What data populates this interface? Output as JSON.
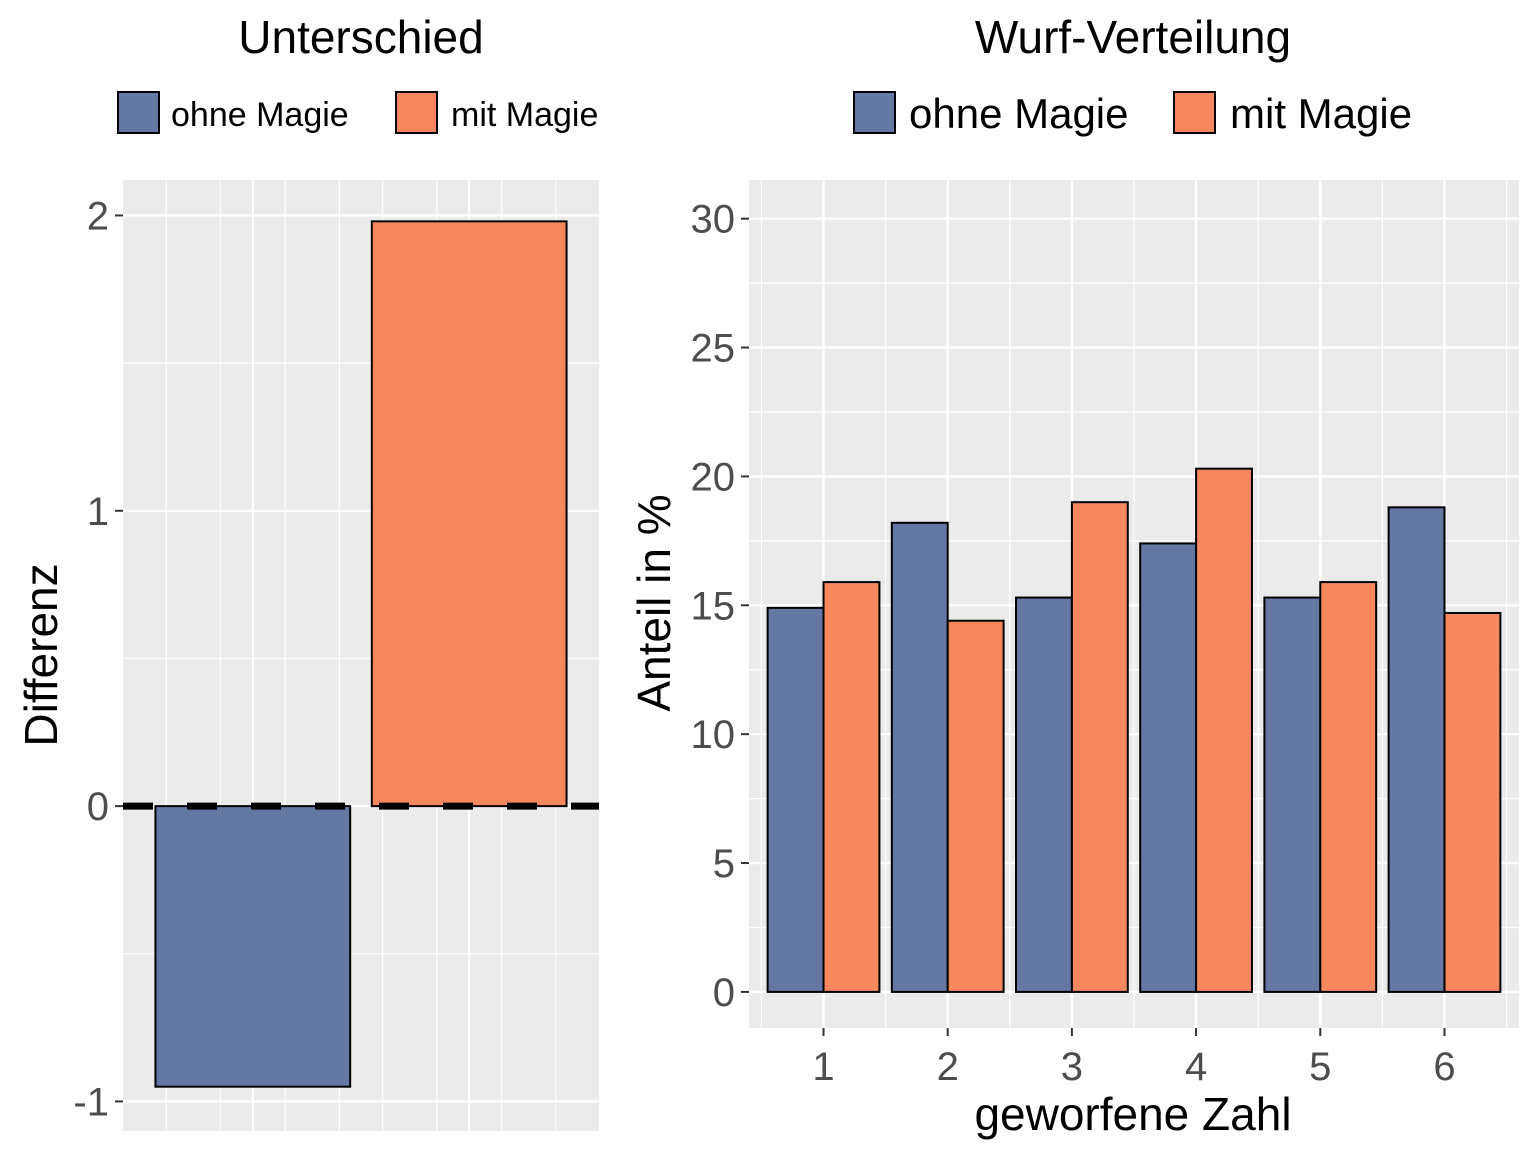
{
  "colors": {
    "ohne_magie": "#6577A3",
    "mit_magie": "#F7885E",
    "panel_bg": "#EBEBEB",
    "grid_major": "#FFFFFF",
    "bar_outline": "#000000",
    "tick_text": "#4D4D4D"
  },
  "chart_data": [
    {
      "type": "bar",
      "title": "Unterschied",
      "ylabel": "Differenz",
      "xlabel": "",
      "legend": {
        "position": "top",
        "entries": [
          "ohne Magie",
          "mit Magie"
        ]
      },
      "categories": [
        "ohne Magie",
        "mit Magie"
      ],
      "values": [
        -0.95,
        1.98
      ],
      "ylim": [
        -1.1,
        2.12
      ],
      "yticks": [
        -1,
        0,
        1,
        2
      ],
      "ytick_labels": [
        "-1",
        "0",
        "1",
        "2"
      ],
      "reference_line": {
        "y": 0,
        "style": "dashed"
      },
      "grid": true
    },
    {
      "type": "bar",
      "title": "Wurf-Verteilung",
      "ylabel": "Anteil in %",
      "xlabel": "geworfene Zahl",
      "legend": {
        "position": "top",
        "entries": [
          "ohne Magie",
          "mit Magie"
        ]
      },
      "categories": [
        "1",
        "2",
        "3",
        "4",
        "5",
        "6"
      ],
      "series": [
        {
          "name": "ohne Magie",
          "values": [
            14.9,
            18.2,
            15.3,
            17.4,
            15.3,
            18.8
          ]
        },
        {
          "name": "mit Magie",
          "values": [
            15.9,
            14.4,
            19.0,
            20.3,
            15.9,
            14.7
          ]
        }
      ],
      "ylim": [
        -1.4,
        31.5
      ],
      "yticks": [
        0,
        5,
        10,
        15,
        20,
        25,
        30
      ],
      "ytick_labels": [
        "0",
        "5",
        "10",
        "15",
        "20",
        "25",
        "30"
      ],
      "grid": true
    }
  ]
}
